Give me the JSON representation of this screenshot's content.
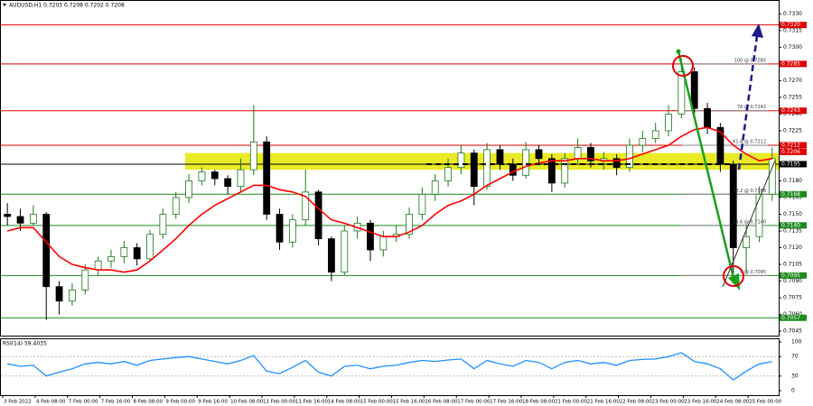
{
  "chart_data": {
    "type": "candlestick",
    "title": "AUDUSD,H1  0.7203 0.7208 0.7202 0.7208",
    "ylim": [
      0.7041,
      0.734
    ],
    "yticks": [
      {
        "value": 0.733,
        "label": "0.7330"
      },
      0.7315,
      {
        "value": 0.73,
        "label": "0.7300"
      },
      0.7285,
      {
        "value": 0.727,
        "label": "0.7270"
      },
      0.7255,
      {
        "value": 0.724,
        "label": "0.7240"
      },
      0.7225,
      {
        "value": 0.721,
        "label": "0.7210"
      },
      0.7195,
      {
        "value": 0.718,
        "label": "0.7180"
      },
      0.7165,
      {
        "value": 0.715,
        "label": "0.7150"
      },
      0.7135,
      {
        "value": 0.712,
        "label": "0.7120"
      },
      0.7105,
      {
        "value": 0.709,
        "label": "0.7090"
      },
      0.7075,
      {
        "value": 0.706,
        "label": "0.7060"
      },
      0.7045
    ],
    "xtick_labels": [
      "3 Feb 2022",
      "4 Feb 08:00",
      "7 Feb 00:00",
      "7 Feb 16:00",
      "8 Feb 08:00",
      "9 Feb 00:00",
      "9 Feb 16:00",
      "10 Feb 08:00",
      "11 Feb 00:00",
      "11 Feb 16:00",
      "14 Feb 08:00",
      "15 Feb 00:00",
      "15 Feb 16:00",
      "16 Feb 08:00",
      "17 Feb 00:00",
      "17 Feb 16:00",
      "18 Feb 08:00",
      "21 Feb 00:00",
      "21 Feb 16:00",
      "22 Feb 08:00",
      "23 Feb 00:00",
      "23 Feb 16:00",
      "24 Feb 08:00",
      "25 Feb 00:00"
    ],
    "bull_color": "#1b7a1b",
    "bear_color": "#000000",
    "open": [
      0.715,
      0.7148,
      0.7142,
      0.715,
      0.7085,
      0.7072,
      0.7082,
      0.71,
      0.7108,
      0.7112,
      0.712,
      0.711,
      0.7132,
      0.715,
      0.7165,
      0.718,
      0.7188,
      0.7182,
      0.7175,
      0.719,
      0.7215,
      0.715,
      0.7125,
      0.7145,
      0.717,
      0.7128,
      0.7098,
      0.7135,
      0.7142,
      0.7118,
      0.713,
      0.7132,
      0.715,
      0.7168,
      0.718,
      0.7192,
      0.7205,
      0.7175,
      0.7208,
      0.7195,
      0.7185,
      0.7208,
      0.72,
      0.7178,
      0.72,
      0.721,
      0.7198,
      0.72,
      0.7192,
      0.7212,
      0.7218,
      0.7225,
      0.724,
      0.7278,
      0.7245,
      0.7228,
      0.7195,
      0.712,
      0.713,
      0.7168
    ],
    "high": [
      0.716,
      0.7155,
      0.7158,
      0.7152,
      0.709,
      0.7088,
      0.7105,
      0.7112,
      0.7118,
      0.7126,
      0.7124,
      0.7136,
      0.7155,
      0.717,
      0.7186,
      0.7192,
      0.719,
      0.7185,
      0.72,
      0.7248,
      0.722,
      0.7155,
      0.715,
      0.719,
      0.7172,
      0.713,
      0.714,
      0.7148,
      0.7145,
      0.7135,
      0.714,
      0.7156,
      0.7174,
      0.7186,
      0.72,
      0.7212,
      0.7208,
      0.7214,
      0.7212,
      0.72,
      0.7215,
      0.7212,
      0.7204,
      0.7205,
      0.7218,
      0.7214,
      0.7206,
      0.7204,
      0.7218,
      0.7225,
      0.7232,
      0.7248,
      0.729,
      0.7282,
      0.725,
      0.7232,
      0.7198,
      0.714,
      0.7175,
      0.721
    ],
    "low": [
      0.714,
      0.7135,
      0.714,
      0.7055,
      0.706,
      0.7068,
      0.7078,
      0.7095,
      0.7102,
      0.7106,
      0.7104,
      0.7108,
      0.7128,
      0.7146,
      0.716,
      0.7176,
      0.7176,
      0.7168,
      0.717,
      0.7185,
      0.7145,
      0.7118,
      0.712,
      0.714,
      0.7122,
      0.709,
      0.7095,
      0.7128,
      0.7108,
      0.7112,
      0.7125,
      0.7128,
      0.7145,
      0.7162,
      0.7175,
      0.7186,
      0.7158,
      0.7172,
      0.719,
      0.718,
      0.7182,
      0.7195,
      0.717,
      0.7174,
      0.7196,
      0.7192,
      0.719,
      0.7185,
      0.7188,
      0.7206,
      0.7214,
      0.722,
      0.7236,
      0.724,
      0.7222,
      0.7188,
      0.7088,
      0.7098,
      0.7125,
      0.7162
    ],
    "close": [
      0.7148,
      0.7142,
      0.715,
      0.7085,
      0.7072,
      0.7082,
      0.71,
      0.7108,
      0.7112,
      0.712,
      0.711,
      0.7132,
      0.715,
      0.7165,
      0.718,
      0.7188,
      0.7182,
      0.7175,
      0.719,
      0.7215,
      0.715,
      0.7125,
      0.7145,
      0.717,
      0.7128,
      0.7098,
      0.7135,
      0.7142,
      0.7118,
      0.713,
      0.7132,
      0.715,
      0.7168,
      0.718,
      0.7192,
      0.7205,
      0.7175,
      0.7208,
      0.7195,
      0.7185,
      0.7208,
      0.72,
      0.7178,
      0.72,
      0.721,
      0.7198,
      0.72,
      0.7192,
      0.7212,
      0.7218,
      0.7225,
      0.724,
      0.7278,
      0.7245,
      0.7228,
      0.7195,
      0.712,
      0.713,
      0.7168,
      0.72
    ],
    "ma": {
      "color": "#ff0000",
      "values": [
        0.7135,
        0.7138,
        0.7138,
        0.7125,
        0.7112,
        0.7105,
        0.7102,
        0.71,
        0.71,
        0.7098,
        0.71,
        0.7108,
        0.7118,
        0.7128,
        0.714,
        0.715,
        0.7158,
        0.7164,
        0.717,
        0.7176,
        0.7176,
        0.7172,
        0.717,
        0.7166,
        0.7155,
        0.7145,
        0.7142,
        0.7138,
        0.7134,
        0.713,
        0.713,
        0.7134,
        0.714,
        0.715,
        0.7158,
        0.7162,
        0.7168,
        0.7176,
        0.7182,
        0.7188,
        0.7193,
        0.7196,
        0.7198,
        0.7198,
        0.72,
        0.72,
        0.7198,
        0.7198,
        0.72,
        0.7204,
        0.7208,
        0.7212,
        0.722,
        0.7226,
        0.7228,
        0.7224,
        0.7212,
        0.7204,
        0.7198,
        0.72
      ]
    },
    "zone": {
      "range": [
        0.719,
        0.7205
      ],
      "color": "#e6e600"
    },
    "levels": [
      {
        "value": 0.732,
        "label": "0.7320",
        "color": "#e00000"
      },
      {
        "value": 0.7285,
        "label": "0.7285",
        "color": "#e00000",
        "fib": "100 @ 0.7285"
      },
      {
        "value": 0.7243,
        "label": "0.7243",
        "color": "#e00000",
        "fib": "78 @ 0.7243"
      },
      {
        "value": 0.7212,
        "label": "0.7212",
        "color": "#e00000",
        "fib": "61.8 @ 0.7212"
      },
      {
        "value": 0.7195,
        "label": "0.7195",
        "color": "#000000"
      },
      {
        "value": 0.7168,
        "label": "0.7168",
        "color": "#1f8a1f",
        "fib": "38.2 @ 0.7168"
      },
      {
        "value": 0.714,
        "label": "0.7140",
        "color": "#1f8a1f",
        "fib": "23.6 @ 0.7140"
      },
      {
        "value": 0.7095,
        "label": "0.7095",
        "color": "#1f8a1f",
        "fib": "0 @ 0.7095"
      },
      {
        "value": 0.7057,
        "label": "0.7057",
        "color": "#1f8a1f"
      }
    ],
    "current_price": {
      "value": 0.7206,
      "label": "0.7206",
      "color": "#e00000"
    },
    "rsi": {
      "label": "RSI(14) 59.4035",
      "color": "#1e90ff",
      "ylim": [
        0,
        100
      ],
      "yticks": [
        100,
        70,
        30,
        0
      ],
      "values": [
        55,
        50,
        52,
        30,
        38,
        45,
        55,
        58,
        55,
        60,
        52,
        62,
        65,
        68,
        70,
        65,
        60,
        55,
        62,
        72,
        40,
        35,
        48,
        62,
        38,
        30,
        50,
        52,
        45,
        50,
        52,
        58,
        62,
        60,
        63,
        65,
        45,
        62,
        55,
        50,
        62,
        58,
        45,
        58,
        62,
        55,
        58,
        52,
        62,
        64,
        65,
        70,
        78,
        60,
        55,
        45,
        22,
        40,
        55,
        59.4
      ]
    }
  }
}
